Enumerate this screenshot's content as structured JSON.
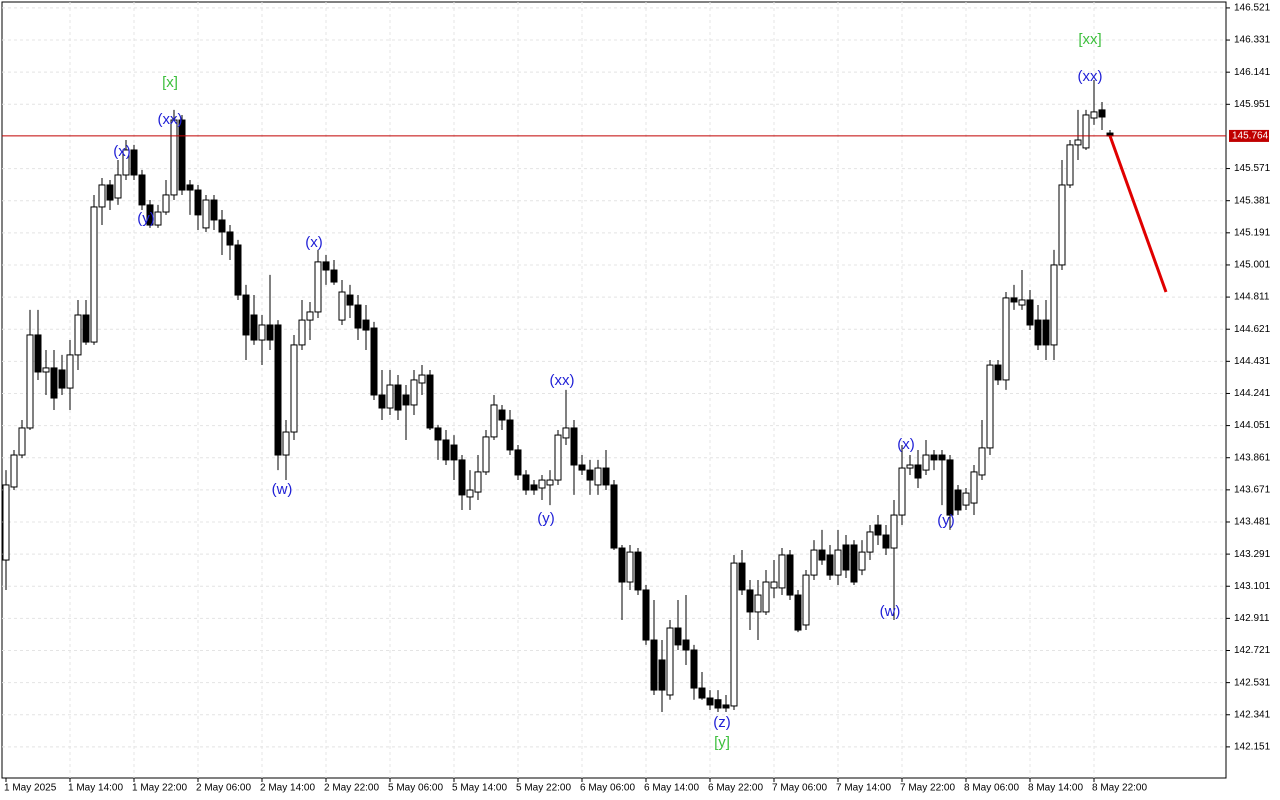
{
  "chart_data": {
    "type": "candlestick",
    "up_color": "#ffffff",
    "down_color": "#000000",
    "grid": true,
    "ylim": [
      141.967,
      146.556
    ],
    "yticks": [
      146.521,
      146.331,
      146.141,
      145.951,
      145.571,
      145.381,
      145.191,
      145.001,
      144.811,
      144.621,
      144.431,
      144.241,
      144.051,
      143.861,
      143.671,
      143.481,
      143.291,
      143.101,
      142.911,
      142.721,
      142.531,
      142.341,
      142.151
    ],
    "xticks": [
      {
        "value": 0,
        "label": "1 May 2025"
      },
      {
        "value": 8,
        "label": "1 May 14:00"
      },
      {
        "value": 16,
        "label": "1 May 22:00"
      },
      {
        "value": 24,
        "label": "2 May 06:00"
      },
      {
        "value": 32,
        "label": "2 May 14:00"
      },
      {
        "value": 40,
        "label": "2 May 22:00"
      },
      {
        "value": 48,
        "label": "5 May 06:00"
      },
      {
        "value": 56,
        "label": "5 May 14:00"
      },
      {
        "value": 64,
        "label": "5 May 22:00"
      },
      {
        "value": 72,
        "label": "6 May 06:00"
      },
      {
        "value": 80,
        "label": "6 May 14:00"
      },
      {
        "value": 88,
        "label": "6 May 22:00"
      },
      {
        "value": 96,
        "label": "7 May 06:00"
      },
      {
        "value": 104,
        "label": "7 May 14:00"
      },
      {
        "value": 112,
        "label": "7 May 22:00"
      },
      {
        "value": 120,
        "label": "8 May 06:00"
      },
      {
        "value": 128,
        "label": "8 May 14:00"
      },
      {
        "value": 136,
        "label": "8 May 22:00"
      }
    ],
    "open": [
      143.256,
      143.688,
      143.877,
      144.037,
      144.587,
      144.368,
      144.392,
      144.38,
      144.273,
      144.469,
      144.705,
      144.545,
      145.344,
      145.474,
      145.397,
      145.533,
      145.681,
      145.533,
      145.356,
      145.237,
      145.314,
      145.415,
      145.858,
      145.474,
      145.444,
      145.22,
      145.385,
      145.267,
      145.196,
      145.119,
      144.823,
      144.705,
      144.557,
      144.646,
      144.646,
      143.877,
      144.013,
      144.528,
      144.675,
      144.723,
      145.019,
      144.971,
      144.675,
      144.823,
      144.764,
      144.675,
      144.628,
      144.232,
      144.155,
      144.291,
      144.232,
      144.173,
      144.303,
      144.35,
      144.037,
      143.966,
      143.936,
      143.848,
      143.629,
      143.658,
      143.777,
      143.984,
      144.143,
      144.084,
      143.907,
      143.759,
      143.7,
      143.682,
      143.7,
      143.729,
      143.978,
      144.037,
      143.818,
      143.788,
      143.7,
      143.8,
      143.7,
      143.327,
      143.126,
      143.303,
      143.079,
      142.783,
      142.665,
      142.458,
      142.854,
      142.783,
      142.724,
      142.499,
      142.44,
      142.43,
      142.399,
      142.393,
      143.238,
      143.079,
      142.949,
      142.949,
      143.091,
      143.091,
      143.286,
      143.049,
      142.872,
      143.167,
      143.315,
      143.286,
      143.167,
      143.345,
      143.345,
      143.197,
      143.303,
      143.463,
      143.404,
      143.327,
      143.522,
      143.8,
      143.818,
      143.788,
      143.877,
      143.877,
      143.848,
      143.67,
      143.581,
      143.593,
      143.759,
      143.919,
      144.409,
      144.321,
      144.806,
      144.764,
      144.794,
      144.675,
      144.675,
      144.528,
      145.001,
      145.474,
      145.711,
      145.693,
      145.87,
      145.918,
      145.781
    ],
    "high": [
      143.788,
      143.907,
      144.084,
      144.735,
      144.735,
      144.498,
      144.498,
      144.469,
      144.557,
      144.794,
      144.794,
      145.415,
      145.515,
      145.503,
      145.622,
      145.74,
      145.711,
      145.563,
      145.385,
      145.356,
      145.503,
      145.918,
      145.888,
      145.503,
      145.474,
      145.415,
      145.415,
      145.326,
      145.237,
      145.149,
      144.883,
      144.823,
      144.705,
      144.942,
      144.675,
      144.084,
      144.587,
      144.794,
      144.782,
      145.09,
      145.06,
      145.03,
      144.912,
      144.883,
      144.823,
      144.764,
      144.664,
      144.38,
      144.38,
      144.35,
      144.291,
      144.38,
      144.409,
      144.38,
      144.055,
      144.025,
      143.995,
      143.877,
      143.788,
      143.877,
      144.025,
      144.232,
      144.173,
      144.143,
      143.936,
      143.788,
      143.729,
      143.759,
      143.788,
      144.025,
      144.262,
      144.084,
      143.877,
      143.848,
      143.848,
      143.907,
      143.729,
      143.345,
      143.345,
      143.327,
      143.108,
      143.02,
      142.783,
      142.901,
      143.02,
      143.049,
      142.754,
      142.594,
      142.487,
      142.487,
      142.458,
      143.286,
      143.315,
      143.138,
      143.138,
      143.197,
      143.256,
      143.327,
      143.315,
      143.079,
      143.197,
      143.374,
      143.434,
      143.345,
      143.434,
      143.404,
      143.374,
      143.374,
      143.463,
      143.522,
      143.463,
      143.611,
      143.936,
      143.877,
      143.907,
      143.966,
      143.907,
      143.907,
      143.877,
      143.7,
      143.682,
      143.818,
      144.084,
      144.439,
      144.439,
      144.841,
      144.883,
      144.971,
      144.853,
      144.764,
      144.794,
      145.09,
      145.622,
      145.74,
      145.918,
      145.918,
      146.095,
      145.965,
      145.799
    ],
    "low": [
      143.079,
      143.67,
      143.859,
      144.025,
      144.321,
      144.232,
      144.143,
      144.232,
      144.143,
      144.38,
      144.528,
      144.528,
      145.237,
      145.326,
      145.356,
      145.503,
      145.503,
      145.326,
      145.22,
      145.22,
      145.297,
      145.385,
      145.415,
      145.297,
      145.208,
      145.196,
      145.208,
      145.06,
      145.03,
      144.794,
      144.439,
      144.528,
      144.409,
      144.498,
      143.788,
      143.729,
      143.966,
      144.498,
      144.557,
      144.687,
      144.883,
      144.883,
      144.646,
      144.687,
      144.557,
      144.498,
      144.202,
      144.084,
      144.114,
      144.084,
      143.966,
      144.114,
      144.232,
      144.025,
      143.848,
      143.818,
      143.729,
      143.552,
      143.552,
      143.611,
      143.759,
      143.966,
      144.025,
      143.877,
      143.729,
      143.641,
      143.641,
      143.611,
      143.581,
      143.7,
      143.936,
      143.641,
      143.759,
      143.641,
      143.641,
      143.67,
      143.315,
      142.901,
      143.079,
      143.049,
      142.754,
      142.458,
      142.357,
      142.43,
      142.724,
      142.635,
      142.43,
      142.43,
      142.369,
      142.357,
      142.357,
      142.369,
      143.049,
      142.842,
      142.783,
      142.931,
      143.031,
      143.049,
      143.02,
      142.83,
      142.842,
      143.138,
      143.227,
      143.138,
      143.108,
      143.15,
      143.108,
      143.167,
      143.256,
      143.345,
      143.286,
      142.901,
      143.463,
      143.759,
      143.682,
      143.759,
      143.788,
      143.581,
      143.434,
      143.522,
      143.552,
      143.522,
      143.729,
      143.877,
      144.291,
      144.262,
      144.735,
      144.735,
      144.616,
      144.498,
      144.439,
      144.439,
      144.971,
      145.456,
      145.622,
      145.681,
      145.829,
      145.799,
      145.752
    ],
    "close": [
      143.7,
      143.877,
      144.037,
      144.587,
      144.368,
      144.392,
      144.214,
      144.273,
      144.469,
      144.705,
      144.545,
      145.344,
      145.474,
      145.385,
      145.533,
      145.681,
      145.533,
      145.356,
      145.237,
      145.314,
      145.415,
      145.858,
      145.444,
      145.444,
      145.297,
      145.385,
      145.267,
      145.196,
      145.119,
      144.823,
      144.587,
      144.557,
      144.646,
      144.557,
      143.877,
      144.013,
      144.528,
      144.675,
      144.723,
      145.019,
      144.971,
      144.9,
      144.841,
      144.764,
      144.628,
      144.616,
      144.232,
      144.155,
      144.291,
      144.143,
      144.173,
      144.321,
      144.35,
      144.037,
      143.966,
      143.848,
      143.848,
      143.641,
      143.67,
      143.777,
      143.984,
      144.173,
      144.084,
      143.907,
      143.759,
      143.67,
      143.67,
      143.729,
      143.729,
      143.995,
      144.037,
      143.818,
      143.788,
      143.729,
      143.8,
      143.7,
      143.327,
      143.126,
      143.303,
      143.079,
      142.783,
      142.487,
      142.487,
      142.854,
      142.754,
      142.724,
      142.499,
      142.44,
      142.399,
      142.381,
      142.381,
      143.238,
      143.079,
      142.949,
      143.049,
      143.126,
      143.126,
      143.286,
      143.049,
      142.842,
      143.167,
      143.315,
      143.256,
      143.167,
      143.315,
      143.197,
      143.126,
      143.303,
      143.422,
      143.404,
      143.327,
      143.522,
      143.8,
      143.818,
      143.741,
      143.877,
      143.848,
      143.848,
      143.522,
      143.552,
      143.652,
      143.777,
      143.919,
      144.409,
      144.321,
      144.806,
      144.782,
      144.794,
      144.646,
      144.528,
      144.528,
      145.001,
      145.474,
      145.711,
      145.74,
      145.888,
      145.906,
      145.876,
      145.764
    ],
    "current_price": {
      "value": 145.764,
      "color": "#c00000"
    },
    "forecast": {
      "color": "#e00000",
      "values": [
        145.764,
        144.841
      ]
    },
    "annotations": [
      {
        "text": "(x)",
        "color": "#1f1fd6"
      },
      {
        "text": "(y)",
        "color": "#1f1fd6"
      },
      {
        "text": "(xx)",
        "color": "#1f1fd6"
      },
      {
        "text": "[x]",
        "color": "#3cbf3c"
      },
      {
        "text": "(w)",
        "color": "#1f1fd6"
      },
      {
        "text": "(x)",
        "color": "#1f1fd6"
      },
      {
        "text": "(xx)",
        "color": "#1f1fd6"
      },
      {
        "text": "(y)",
        "color": "#1f1fd6"
      },
      {
        "text": "(z)",
        "color": "#1f1fd6"
      },
      {
        "text": "[y]",
        "color": "#3cbf3c"
      },
      {
        "text": "(w)",
        "color": "#1f1fd6"
      },
      {
        "text": "(x)",
        "color": "#1f1fd6"
      },
      {
        "text": "(y)",
        "color": "#1f1fd6"
      },
      {
        "text": "(xx)",
        "color": "#1f1fd6"
      },
      {
        "text": "[xx]",
        "color": "#3cbf3c"
      }
    ]
  }
}
